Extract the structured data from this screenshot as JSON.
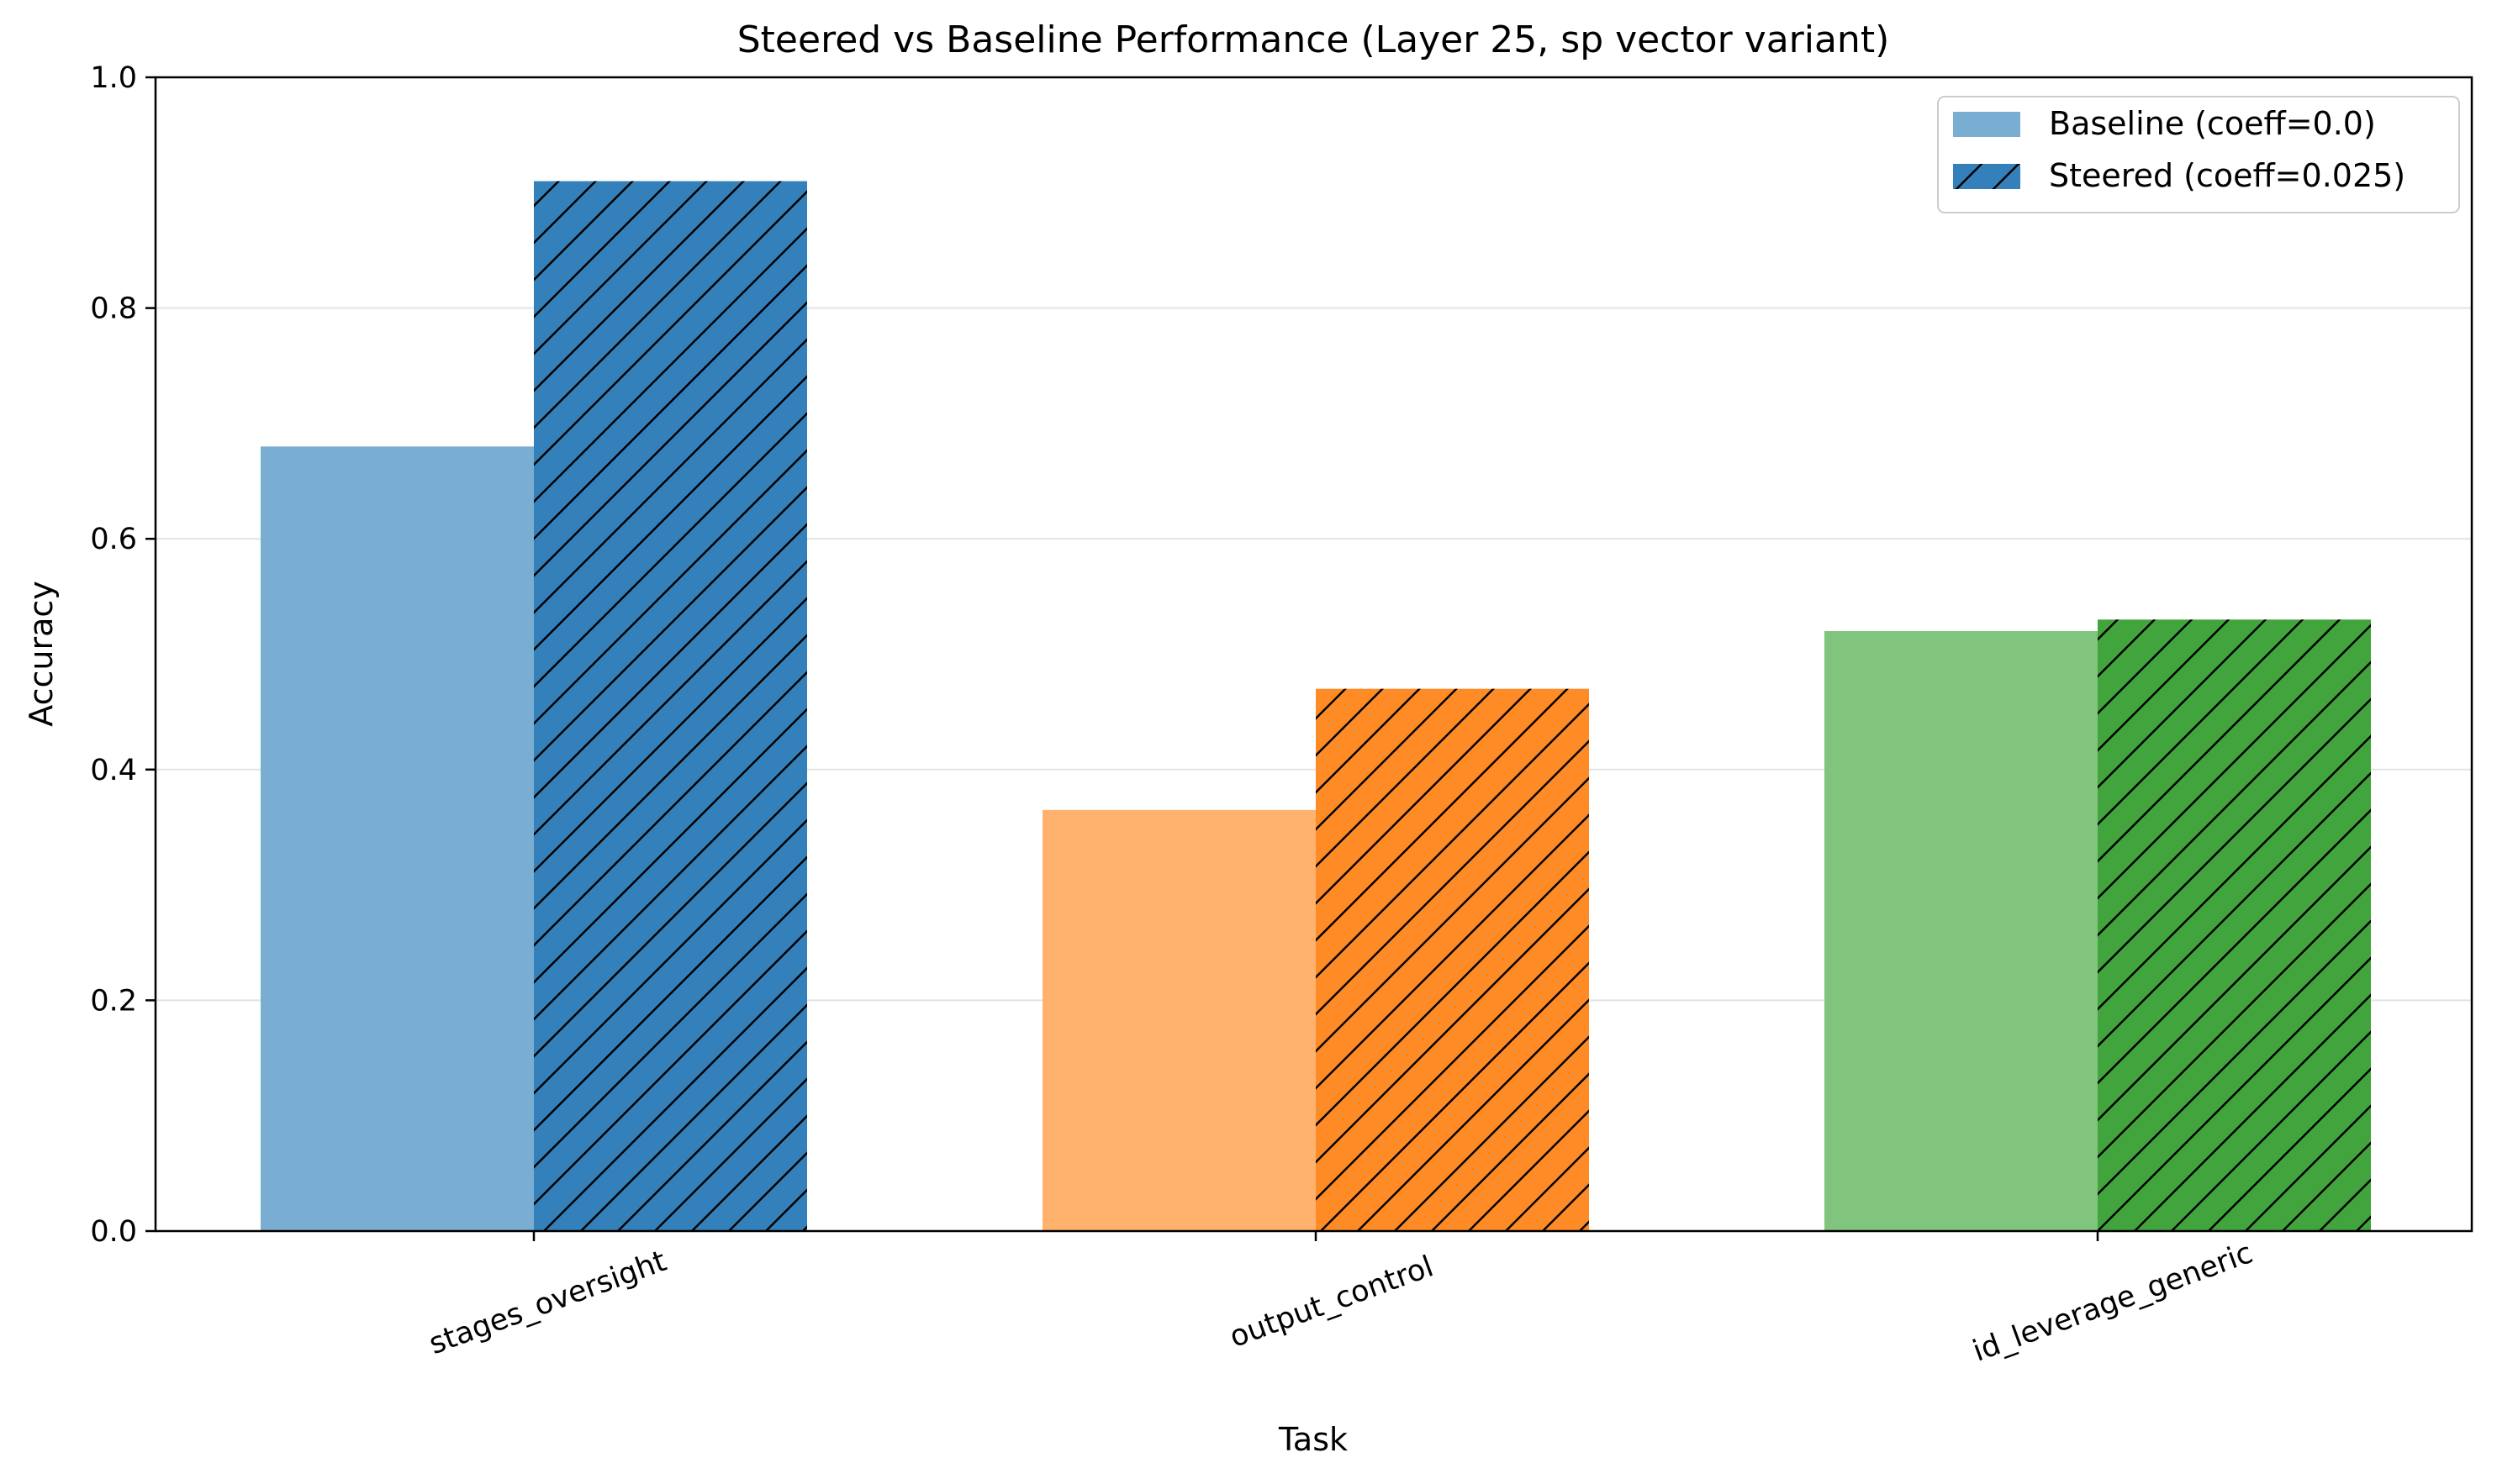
{
  "chart_data": {
    "type": "bar",
    "title": "Steered vs Baseline Performance (Layer 25, sp vector variant)",
    "xlabel": "Task",
    "ylabel": "Accuracy",
    "ylim": [
      0,
      1.0
    ],
    "yticks": [
      "0.0",
      "0.2",
      "0.4",
      "0.6",
      "0.8",
      "1.0"
    ],
    "categories": [
      "stages_oversight",
      "output_control",
      "id_leverage_generic"
    ],
    "series": [
      {
        "name": "Baseline (coeff=0.0)",
        "values": [
          0.68,
          0.365,
          0.52
        ],
        "colors": [
          "#7aadd2",
          "#ffb26d",
          "#80c47e"
        ],
        "hatch": false
      },
      {
        "name": "Steered (coeff=0.025)",
        "values": [
          0.91,
          0.47,
          0.53
        ],
        "colors": [
          "#3480ba",
          "#ff8b27",
          "#42a43d"
        ],
        "hatch": true
      }
    ],
    "legend_position": "top-right",
    "grid": "y",
    "legend_swatch_colors": [
      "#7aadd2",
      "#3480ba"
    ]
  }
}
